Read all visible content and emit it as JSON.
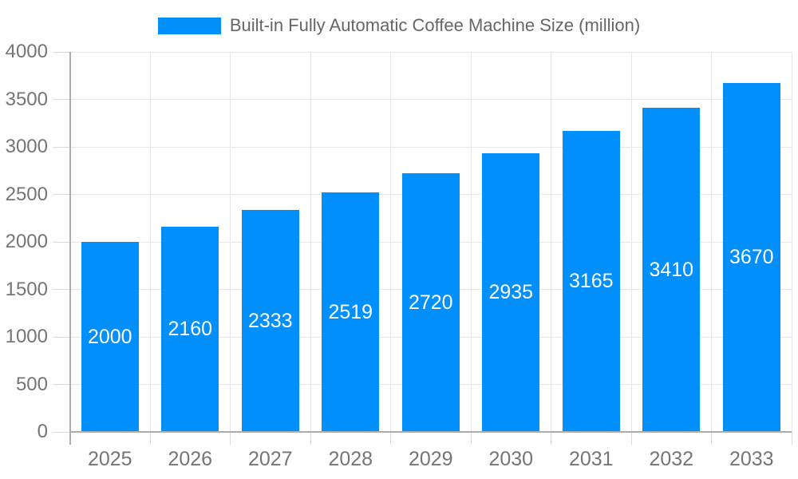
{
  "chart_data": {
    "type": "bar",
    "title": "Built-in Fully Automatic Coffee Machine Size (million)",
    "categories": [
      "2025",
      "2026",
      "2027",
      "2028",
      "2029",
      "2030",
      "2031",
      "2032",
      "2033"
    ],
    "values": [
      2000,
      2160,
      2333,
      2519,
      2720,
      2935,
      3165,
      3410,
      3670
    ],
    "xlabel": "",
    "ylabel": "",
    "ylim": [
      0,
      4000
    ],
    "ytick_step": 500,
    "ytick_labels": [
      "0",
      "500",
      "1000",
      "1500",
      "2000",
      "2500",
      "3000",
      "3500",
      "4000"
    ],
    "grid": true,
    "legend_position": "top",
    "bar_labels_shown": true,
    "colors": {
      "bar": "#008FFB",
      "bar_label_text": "#ffffff",
      "gridline": "#e7e7e7",
      "axis_line": "#adadad",
      "tick_mark": "#d9d9d9",
      "tick_text": "#757575",
      "legend_text": "#666666",
      "background": "#ffffff"
    }
  }
}
